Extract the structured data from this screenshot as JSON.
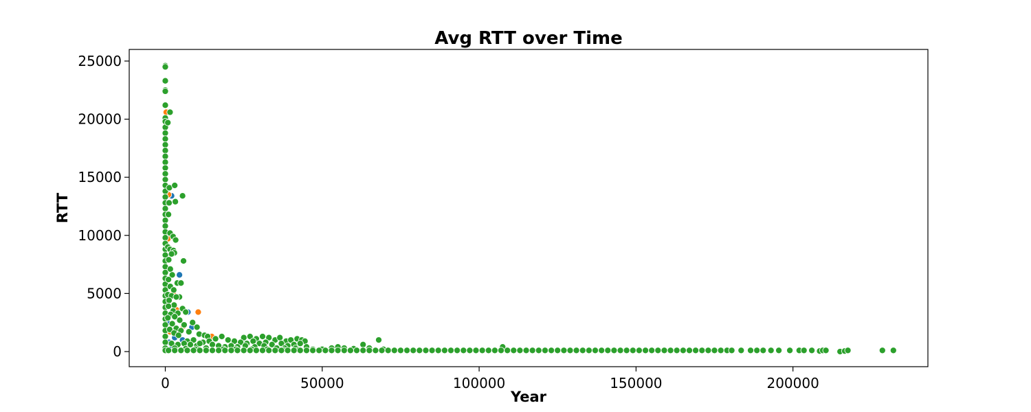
{
  "chart_data": {
    "type": "scatter",
    "title": "Avg RTT over Time",
    "xlabel": "Year",
    "ylabel": "RTT",
    "xlim": [
      -11500,
      243000
    ],
    "ylim": [
      -1300,
      26000
    ],
    "xticks": [
      0,
      50000,
      100000,
      150000,
      200000
    ],
    "yticks": [
      0,
      5000,
      10000,
      15000,
      20000,
      25000
    ],
    "xtick_labels": [
      "0",
      "50000",
      "100000",
      "150000",
      "200000"
    ],
    "ytick_labels": [
      "0",
      "5000",
      "10000",
      "15000",
      "20000",
      "25000"
    ],
    "grid": false,
    "legend": false,
    "series": [
      {
        "color": "#1f77b4",
        "points": [
          [
            2000,
            13400
          ],
          [
            4500,
            6600
          ],
          [
            7200,
            3400
          ],
          [
            8500,
            2100
          ],
          [
            1200,
            800
          ],
          [
            1800,
            200
          ],
          [
            3000,
            1200
          ],
          [
            5500,
            1000
          ],
          [
            600,
            2500
          ]
        ]
      },
      {
        "color": "#ff7f0e",
        "points": [
          [
            300,
            20600
          ],
          [
            1000,
            13500
          ],
          [
            3500,
            3600
          ],
          [
            10500,
            3400
          ],
          [
            14800,
            1300
          ],
          [
            800,
            9700
          ],
          [
            2500,
            5000
          ],
          [
            5800,
            2200
          ],
          [
            1500,
            1700
          ],
          [
            400,
            7000
          ]
        ]
      },
      {
        "color": "#2ca02c",
        "points": [
          [
            0,
            24600
          ],
          [
            0,
            24500
          ],
          [
            0,
            23300
          ],
          [
            0,
            22500
          ],
          [
            0,
            22400
          ],
          [
            0,
            21200
          ],
          [
            0,
            20100
          ],
          [
            0,
            19800
          ],
          [
            0,
            19300
          ],
          [
            0,
            18800
          ],
          [
            0,
            18300
          ],
          [
            0,
            17800
          ],
          [
            0,
            17300
          ],
          [
            0,
            16800
          ],
          [
            0,
            16300
          ],
          [
            0,
            15800
          ],
          [
            0,
            15300
          ],
          [
            0,
            14800
          ],
          [
            0,
            14300
          ],
          [
            0,
            13800
          ],
          [
            0,
            13300
          ],
          [
            0,
            12800
          ],
          [
            0,
            12300
          ],
          [
            0,
            11800
          ],
          [
            0,
            11300
          ],
          [
            0,
            10800
          ],
          [
            0,
            10300
          ],
          [
            0,
            9800
          ],
          [
            0,
            9300
          ],
          [
            0,
            8800
          ],
          [
            0,
            8300
          ],
          [
            0,
            7800
          ],
          [
            0,
            7300
          ],
          [
            0,
            6800
          ],
          [
            0,
            6300
          ],
          [
            0,
            5800
          ],
          [
            0,
            5300
          ],
          [
            0,
            4800
          ],
          [
            0,
            4300
          ],
          [
            0,
            3800
          ],
          [
            0,
            3300
          ],
          [
            0,
            2800
          ],
          [
            0,
            2300
          ],
          [
            0,
            1800
          ],
          [
            0,
            1300
          ],
          [
            0,
            800
          ],
          [
            0,
            300
          ],
          [
            0,
            100
          ],
          [
            1500,
            20600
          ],
          [
            800,
            19700
          ],
          [
            1300,
            14100
          ],
          [
            3000,
            14300
          ],
          [
            5500,
            13400
          ],
          [
            1200,
            12800
          ],
          [
            3200,
            12900
          ],
          [
            1000,
            11800
          ],
          [
            1500,
            10200
          ],
          [
            2500,
            9900
          ],
          [
            3300,
            9600
          ],
          [
            800,
            9000
          ],
          [
            1500,
            8800
          ],
          [
            2600,
            8700
          ],
          [
            2900,
            8500
          ],
          [
            2000,
            8400
          ],
          [
            1100,
            7900
          ],
          [
            5800,
            7800
          ],
          [
            1600,
            7100
          ],
          [
            2200,
            6600
          ],
          [
            1000,
            6200
          ],
          [
            3800,
            5900
          ],
          [
            5000,
            5900
          ],
          [
            1600,
            5600
          ],
          [
            2700,
            5300
          ],
          [
            800,
            4900
          ],
          [
            2000,
            4800
          ],
          [
            4500,
            4700
          ],
          [
            3500,
            4700
          ],
          [
            1200,
            4400
          ],
          [
            2800,
            4000
          ],
          [
            1000,
            3900
          ],
          [
            5500,
            3700
          ],
          [
            2500,
            3500
          ],
          [
            4000,
            3300
          ],
          [
            6500,
            3400
          ],
          [
            1700,
            3200
          ],
          [
            3000,
            3000
          ],
          [
            800,
            2900
          ],
          [
            4600,
            2700
          ],
          [
            8700,
            2500
          ],
          [
            2200,
            2400
          ],
          [
            6000,
            2300
          ],
          [
            10100,
            2100
          ],
          [
            3500,
            2000
          ],
          [
            1400,
            1900
          ],
          [
            5000,
            1800
          ],
          [
            7500,
            1700
          ],
          [
            2800,
            1600
          ],
          [
            10800,
            1500
          ],
          [
            4200,
            1400
          ],
          [
            12500,
            1400
          ],
          [
            13500,
            1300
          ],
          [
            18000,
            1300
          ],
          [
            25000,
            1200
          ],
          [
            27000,
            1300
          ],
          [
            29000,
            1100
          ],
          [
            31000,
            1300
          ],
          [
            33000,
            1200
          ],
          [
            35000,
            1000
          ],
          [
            36500,
            1200
          ],
          [
            38500,
            900
          ],
          [
            40000,
            1000
          ],
          [
            42000,
            1100
          ],
          [
            43500,
            1000
          ],
          [
            44500,
            900
          ],
          [
            20000,
            1000
          ],
          [
            22000,
            900
          ],
          [
            24000,
            800
          ],
          [
            26000,
            700
          ],
          [
            28000,
            900
          ],
          [
            30000,
            700
          ],
          [
            32000,
            800
          ],
          [
            34000,
            600
          ],
          [
            37000,
            700
          ],
          [
            39000,
            500
          ],
          [
            41000,
            600
          ],
          [
            43000,
            700
          ],
          [
            16000,
            1100
          ],
          [
            14000,
            900
          ],
          [
            12000,
            800
          ],
          [
            9000,
            1000
          ],
          [
            7000,
            900
          ],
          [
            6000,
            700
          ],
          [
            2000,
            700
          ],
          [
            4000,
            600
          ],
          [
            8000,
            600
          ],
          [
            10000,
            500
          ],
          [
            11000,
            700
          ],
          [
            15000,
            600
          ],
          [
            17000,
            500
          ],
          [
            19000,
            400
          ],
          [
            21000,
            500
          ],
          [
            23000,
            400
          ],
          [
            25500,
            500
          ],
          [
            28500,
            400
          ],
          [
            31500,
            500
          ],
          [
            35500,
            300
          ],
          [
            38000,
            300
          ],
          [
            41500,
            300
          ],
          [
            45000,
            400
          ],
          [
            47000,
            200
          ],
          [
            50000,
            200
          ],
          [
            53000,
            300
          ],
          [
            55000,
            400
          ],
          [
            57000,
            300
          ],
          [
            60000,
            250
          ],
          [
            63000,
            600
          ],
          [
            65000,
            300
          ],
          [
            68000,
            1000
          ],
          [
            69500,
            200
          ],
          [
            107500,
            400
          ],
          [
            3000,
            300
          ],
          [
            6500,
            250
          ],
          [
            9500,
            200
          ],
          [
            13000,
            300
          ],
          [
            18500,
            200
          ],
          [
            22500,
            200
          ],
          [
            27500,
            200
          ],
          [
            32500,
            200
          ],
          [
            37500,
            150
          ],
          [
            42500,
            150
          ],
          [
            1000,
            100
          ],
          [
            3000,
            100
          ],
          [
            5000,
            100
          ],
          [
            7000,
            100
          ],
          [
            9000,
            100
          ],
          [
            11000,
            100
          ],
          [
            13000,
            100
          ],
          [
            15000,
            100
          ],
          [
            17000,
            100
          ],
          [
            19000,
            100
          ],
          [
            21000,
            100
          ],
          [
            23000,
            100
          ],
          [
            25000,
            100
          ],
          [
            27000,
            100
          ],
          [
            29000,
            100
          ],
          [
            31000,
            100
          ],
          [
            33000,
            100
          ],
          [
            35000,
            100
          ],
          [
            37000,
            100
          ],
          [
            39000,
            100
          ],
          [
            41000,
            100
          ],
          [
            43000,
            100
          ],
          [
            45000,
            100
          ],
          [
            47000,
            100
          ],
          [
            49000,
            100
          ],
          [
            51000,
            100
          ],
          [
            53000,
            100
          ],
          [
            55000,
            100
          ],
          [
            57000,
            100
          ],
          [
            59000,
            100
          ],
          [
            61000,
            100
          ],
          [
            63000,
            100
          ],
          [
            65000,
            100
          ],
          [
            67000,
            100
          ],
          [
            69000,
            100
          ],
          [
            71000,
            100
          ],
          [
            73000,
            100
          ],
          [
            75000,
            100
          ],
          [
            77000,
            100
          ],
          [
            79000,
            100
          ],
          [
            81000,
            100
          ],
          [
            83000,
            100
          ],
          [
            85000,
            100
          ],
          [
            87000,
            100
          ],
          [
            89000,
            100
          ],
          [
            91000,
            100
          ],
          [
            93000,
            100
          ],
          [
            95000,
            100
          ],
          [
            97000,
            100
          ],
          [
            99000,
            100
          ],
          [
            101000,
            100
          ],
          [
            103000,
            100
          ],
          [
            105000,
            100
          ],
          [
            107000,
            100
          ],
          [
            109000,
            100
          ],
          [
            111000,
            100
          ],
          [
            113000,
            100
          ],
          [
            115000,
            100
          ],
          [
            117000,
            100
          ],
          [
            119000,
            100
          ],
          [
            121000,
            100
          ],
          [
            123000,
            100
          ],
          [
            125000,
            100
          ],
          [
            127000,
            100
          ],
          [
            129000,
            100
          ],
          [
            131000,
            100
          ],
          [
            133000,
            100
          ],
          [
            135000,
            100
          ],
          [
            137000,
            100
          ],
          [
            139000,
            100
          ],
          [
            141000,
            100
          ],
          [
            143000,
            100
          ],
          [
            145000,
            100
          ],
          [
            147000,
            100
          ],
          [
            149000,
            100
          ],
          [
            151000,
            100
          ],
          [
            153000,
            100
          ],
          [
            155000,
            100
          ],
          [
            157000,
            100
          ],
          [
            159000,
            100
          ],
          [
            161000,
            100
          ],
          [
            163000,
            100
          ],
          [
            165000,
            100
          ],
          [
            167000,
            100
          ],
          [
            169000,
            100
          ],
          [
            171000,
            100
          ],
          [
            173000,
            100
          ],
          [
            175000,
            100
          ],
          [
            177000,
            100
          ],
          [
            179000,
            100
          ],
          [
            180500,
            100
          ],
          [
            183500,
            100
          ],
          [
            186500,
            100
          ],
          [
            188500,
            100
          ],
          [
            190500,
            100
          ],
          [
            193000,
            100
          ],
          [
            195500,
            100
          ],
          [
            199000,
            100
          ],
          [
            202000,
            100
          ],
          [
            203500,
            100
          ],
          [
            206000,
            100
          ],
          [
            208500,
            50
          ],
          [
            209500,
            100
          ],
          [
            210500,
            100
          ],
          [
            215000,
            0
          ],
          [
            216500,
            50
          ],
          [
            217500,
            100
          ],
          [
            228500,
            100
          ],
          [
            232000,
            100
          ]
        ]
      }
    ]
  }
}
